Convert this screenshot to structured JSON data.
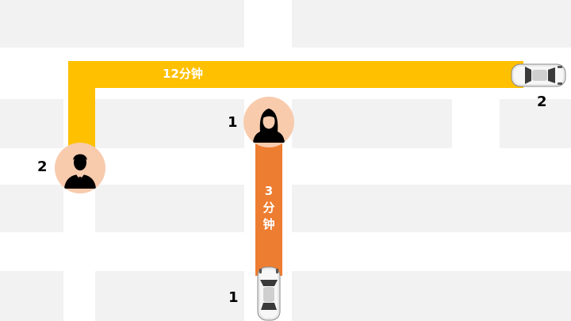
{
  "routes": {
    "yellow": {
      "time_label": "12分钟",
      "color": "#ffc000"
    },
    "orange": {
      "time_chars": [
        "3",
        "分",
        "钟"
      ],
      "color": "#ed7d31"
    }
  },
  "labels": {
    "passenger_woman": "1",
    "passenger_man": "2",
    "car_top_right": "2",
    "car_bottom": "1"
  },
  "colors": {
    "block": "#f2f2f2",
    "avatar_bg": "#f8cbad",
    "silhouette": "#000000"
  },
  "icons": {
    "woman": "woman-avatar-icon",
    "man": "man-avatar-icon",
    "car": "car-top-view-icon"
  }
}
